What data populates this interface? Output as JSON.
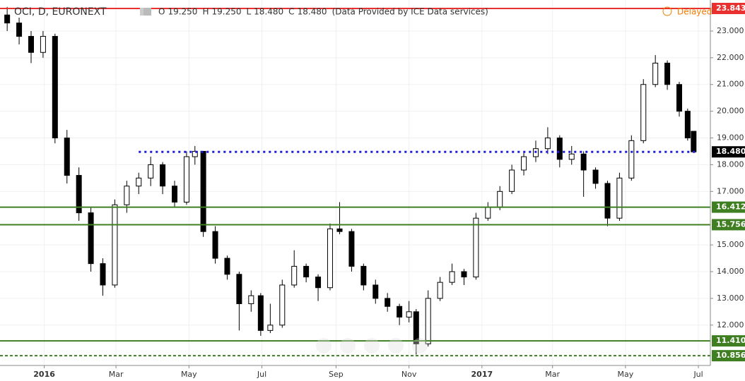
{
  "chart_data": {
    "type": "candlestick",
    "title": "OCI, D, EURONEXT",
    "ohlc_header": [
      {
        "label": "O",
        "value": "19.250"
      },
      {
        "label": "H",
        "value": "19.250"
      },
      {
        "label": "L",
        "value": "18.480"
      },
      {
        "label": "C",
        "value": "18.480"
      }
    ],
    "source_note": "(Data Provided by ICE Data services)",
    "status": "Delayed",
    "x": [
      "2015-12-01",
      "2015-12-11",
      "2015-12-21",
      "2015-12-31",
      "2016-01-10",
      "2016-01-20",
      "2016-01-30",
      "2016-02-09",
      "2016-02-19",
      "2016-02-29",
      "2016-03-10",
      "2016-03-20",
      "2016-03-30",
      "2016-04-09",
      "2016-04-19",
      "2016-04-29",
      "2016-05-06",
      "2016-05-13",
      "2016-05-23",
      "2016-06-02",
      "2016-06-12",
      "2016-06-22",
      "2016-06-30",
      "2016-07-08",
      "2016-07-18",
      "2016-07-28",
      "2016-08-07",
      "2016-08-17",
      "2016-08-27",
      "2016-09-04",
      "2016-09-14",
      "2016-09-24",
      "2016-10-04",
      "2016-10-14",
      "2016-10-24",
      "2016-11-01",
      "2016-11-07",
      "2016-11-17",
      "2016-11-27",
      "2016-12-07",
      "2016-12-17",
      "2016-12-27",
      "2017-01-06",
      "2017-01-16",
      "2017-01-26",
      "2017-02-05",
      "2017-02-15",
      "2017-02-25",
      "2017-03-07",
      "2017-03-17",
      "2017-03-27",
      "2017-04-06",
      "2017-04-16",
      "2017-04-26",
      "2017-05-06",
      "2017-05-16",
      "2017-05-26",
      "2017-06-05",
      "2017-06-15",
      "2017-06-22",
      "2017-06-27"
    ],
    "open": [
      23.6,
      23.3,
      22.8,
      22.2,
      22.8,
      19.0,
      17.6,
      16.2,
      14.3,
      13.5,
      16.5,
      17.2,
      17.5,
      18.0,
      17.2,
      16.6,
      18.3,
      18.5,
      15.5,
      14.5,
      13.9,
      12.8,
      13.1,
      11.8,
      12.0,
      13.5,
      14.2,
      13.8,
      13.4,
      15.6,
      15.5,
      14.2,
      13.5,
      13.0,
      12.7,
      12.3,
      12.5,
      11.3,
      13.0,
      13.6,
      14.0,
      13.8,
      16.0,
      16.4,
      17.0,
      17.8,
      18.3,
      18.6,
      19.0,
      18.2,
      18.4,
      17.8,
      17.3,
      16.0,
      17.5,
      18.9,
      21.0,
      21.8,
      21.0,
      20.0,
      19.25
    ],
    "high": [
      23.9,
      23.5,
      23.0,
      23.0,
      22.9,
      19.3,
      17.9,
      16.4,
      14.5,
      16.7,
      17.4,
      17.7,
      18.3,
      18.1,
      17.4,
      18.5,
      18.7,
      18.5,
      15.7,
      14.6,
      14.0,
      13.3,
      13.2,
      12.8,
      13.7,
      14.8,
      14.3,
      13.9,
      15.8,
      16.6,
      15.6,
      14.3,
      13.7,
      13.2,
      12.8,
      12.9,
      12.6,
      13.3,
      13.8,
      14.3,
      14.1,
      16.2,
      16.6,
      17.2,
      18.0,
      18.5,
      18.9,
      19.4,
      19.1,
      18.7,
      18.5,
      17.9,
      17.4,
      17.7,
      19.1,
      21.2,
      22.1,
      21.9,
      21.1,
      20.1,
      19.25
    ],
    "low": [
      23.0,
      22.5,
      21.8,
      22.0,
      18.8,
      17.3,
      15.9,
      14.0,
      13.1,
      13.4,
      16.2,
      16.9,
      17.2,
      16.9,
      16.4,
      16.5,
      18.0,
      15.3,
      14.3,
      13.7,
      11.8,
      12.5,
      11.6,
      11.7,
      11.9,
      13.4,
      13.6,
      12.9,
      13.3,
      15.4,
      14.0,
      13.3,
      12.8,
      12.5,
      12.0,
      12.1,
      10.9,
      11.2,
      12.9,
      13.5,
      13.5,
      13.7,
      15.9,
      16.3,
      16.9,
      17.6,
      18.1,
      18.4,
      17.9,
      18.0,
      16.8,
      17.1,
      15.7,
      15.9,
      17.4,
      18.8,
      20.9,
      20.8,
      19.8,
      18.9,
      18.48
    ],
    "close": [
      23.3,
      22.8,
      22.2,
      22.8,
      19.0,
      17.6,
      16.2,
      14.3,
      13.5,
      16.5,
      17.2,
      17.5,
      18.0,
      17.2,
      16.6,
      18.3,
      18.5,
      15.5,
      14.5,
      13.9,
      12.8,
      13.1,
      11.8,
      12.0,
      13.5,
      14.2,
      13.8,
      13.4,
      15.6,
      15.5,
      14.2,
      13.5,
      13.0,
      12.7,
      12.3,
      12.5,
      11.3,
      13.0,
      13.6,
      14.0,
      13.8,
      16.0,
      16.4,
      17.0,
      17.8,
      18.3,
      18.6,
      19.0,
      18.2,
      18.4,
      17.8,
      17.3,
      16.0,
      17.5,
      18.9,
      21.0,
      21.8,
      21.0,
      20.0,
      19.0,
      18.48
    ],
    "up_color": "#ffffff",
    "down_color": "#000000",
    "xlim": [
      "2015-11-25",
      "2017-07-11"
    ],
    "xticks": [
      {
        "value": "2016-01-01",
        "label": "2016"
      },
      {
        "value": "2016-03-01",
        "label": "Mar"
      },
      {
        "value": "2016-05-01",
        "label": "May"
      },
      {
        "value": "2016-07-01",
        "label": "Jul"
      },
      {
        "value": "2016-09-01",
        "label": "Sep"
      },
      {
        "value": "2016-11-01",
        "label": "Nov"
      },
      {
        "value": "2017-01-01",
        "label": "2017"
      },
      {
        "value": "2017-03-01",
        "label": "Mar"
      },
      {
        "value": "2017-05-01",
        "label": "May"
      },
      {
        "value": "2017-07-01",
        "label": "Jul"
      }
    ],
    "ylim": [
      10.49,
      24.16
    ],
    "yticks": [
      {
        "value": 12,
        "label": "12.000"
      },
      {
        "value": 13,
        "label": "13.000"
      },
      {
        "value": 14,
        "label": "14.000"
      },
      {
        "value": 15,
        "label": "15.000"
      },
      {
        "value": 17,
        "label": "17.000"
      },
      {
        "value": 18,
        "label": "18.000"
      },
      {
        "value": 19,
        "label": "19.000"
      },
      {
        "value": 20,
        "label": "20.000"
      },
      {
        "value": 21,
        "label": "21.000"
      },
      {
        "value": 22,
        "label": "22.000"
      },
      {
        "value": 23,
        "label": "23.000"
      }
    ],
    "grid": true,
    "levels": [
      {
        "value": 23.843,
        "label": "23.843",
        "color": "#e8302f",
        "style": "solid"
      },
      {
        "value": 16.412,
        "label": "16.412",
        "color": "#3f7f22",
        "style": "solid"
      },
      {
        "value": 15.756,
        "label": "15.756",
        "color": "#3f7f22",
        "style": "solid"
      },
      {
        "value": 11.41,
        "label": "11.410",
        "color": "#3f7f22",
        "style": "solid"
      },
      {
        "value": 10.856,
        "label": "10.856",
        "color": "#3f7f22",
        "style": "dashed"
      },
      {
        "value": 18.48,
        "label": "18.480",
        "color": "#1a1ae0",
        "style": "dotted",
        "start": "2016-03-20",
        "label_color": "#000000"
      }
    ]
  }
}
